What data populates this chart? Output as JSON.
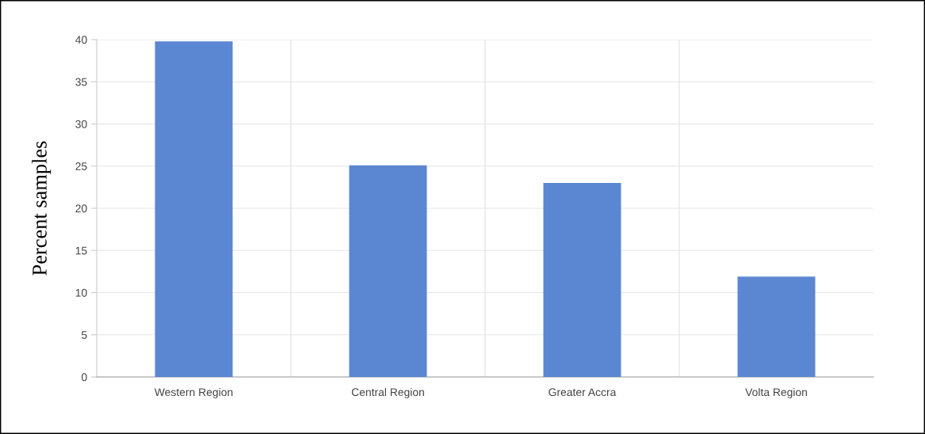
{
  "chart_data": {
    "type": "bar",
    "ylabel": "Percent samples",
    "categories": [
      "Western Region",
      "Central Region",
      "Greater Accra",
      "Volta Region"
    ],
    "values": [
      39.8,
      25.1,
      23.0,
      11.9
    ],
    "color": "#5b87d2",
    "ylim": [
      0,
      40
    ],
    "yticks": [
      0,
      5,
      10,
      15,
      20,
      25,
      30,
      35,
      40
    ],
    "grid": true
  }
}
